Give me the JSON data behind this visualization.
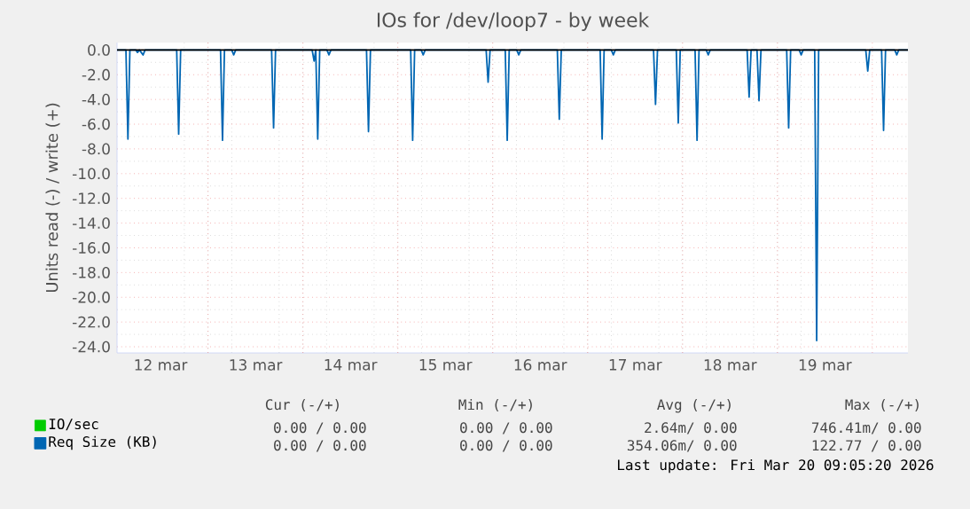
{
  "chart_data": {
    "type": "line",
    "title": "IOs for /dev/loop7 - by week",
    "ylabel": "Units read (-) / write (+)",
    "xlim": [
      "2026-03-12T01:00",
      "2026-03-20T09:00"
    ],
    "xticks": [
      {
        "value": "2026-03-12T12:00",
        "label": "12 mar"
      },
      {
        "value": "2026-03-13T12:00",
        "label": "13 mar"
      },
      {
        "value": "2026-03-14T12:00",
        "label": "14 mar"
      },
      {
        "value": "2026-03-15T12:00",
        "label": "15 mar"
      },
      {
        "value": "2026-03-16T12:00",
        "label": "16 mar"
      },
      {
        "value": "2026-03-17T12:00",
        "label": "17 mar"
      },
      {
        "value": "2026-03-18T12:00",
        "label": "18 mar"
      },
      {
        "value": "2026-03-19T12:00",
        "label": "19 mar"
      },
      {
        "value": "2026-03-13T00:00",
        "label": null
      },
      {
        "value": "2026-03-14T00:00",
        "label": null
      },
      {
        "value": "2026-03-15T00:00",
        "label": null
      },
      {
        "value": "2026-03-16T00:00",
        "label": null
      },
      {
        "value": "2026-03-17T00:00",
        "label": null
      },
      {
        "value": "2026-03-18T00:00",
        "label": null
      },
      {
        "value": "2026-03-19T00:00",
        "label": null
      },
      {
        "value": "2026-03-20T00:00",
        "label": null
      }
    ],
    "ylim": [
      -24.5,
      0.6
    ],
    "yticks": [
      {
        "value": 0,
        "label": "0.0"
      },
      {
        "value": -2,
        "label": "-2.0"
      },
      {
        "value": -4,
        "label": "-4.0"
      },
      {
        "value": -6,
        "label": "-6.0"
      },
      {
        "value": -8,
        "label": "-8.0"
      },
      {
        "value": -10,
        "label": "-10.0"
      },
      {
        "value": -12,
        "label": "-12.0"
      },
      {
        "value": -14,
        "label": "-14.0"
      },
      {
        "value": -16,
        "label": "-16.0"
      },
      {
        "value": -18,
        "label": "-18.0"
      },
      {
        "value": -20,
        "label": "-20.0"
      },
      {
        "value": -22,
        "label": "-22.0"
      },
      {
        "value": -24,
        "label": "-24.0"
      }
    ],
    "grid": true,
    "legend": "bottom left",
    "marker": "none",
    "line_style": "solid",
    "ref_lines": [
      {
        "axis": "y",
        "value": 0,
        "color": "#000000"
      }
    ],
    "series": [
      {
        "name": "IO/sec",
        "color": "#00cc00"
      },
      {
        "name": "Req Size (KB)",
        "color": "#0066b3",
        "x": [
          "2026-03-12T01:00",
          "2026-03-12T03:15",
          "2026-03-12T03:45",
          "2026-03-12T04:15",
          "2026-03-12T05:45",
          "2026-03-12T06:10",
          "2026-03-12T06:40",
          "2026-03-12T07:35",
          "2026-03-12T08:05",
          "2026-03-12T16:05",
          "2026-03-12T16:35",
          "2026-03-12T17:05",
          "2026-03-13T03:10",
          "2026-03-13T03:40",
          "2026-03-13T04:10",
          "2026-03-13T06:00",
          "2026-03-13T06:30",
          "2026-03-13T07:00",
          "2026-03-13T16:05",
          "2026-03-13T16:35",
          "2026-03-13T17:05",
          "2026-03-14T02:20",
          "2026-03-14T02:50",
          "2026-03-14T03:15",
          "2026-03-14T03:45",
          "2026-03-14T04:15",
          "2026-03-14T06:05",
          "2026-03-14T06:35",
          "2026-03-14T07:05",
          "2026-03-14T16:05",
          "2026-03-14T16:35",
          "2026-03-14T17:05",
          "2026-03-15T03:15",
          "2026-03-15T03:45",
          "2026-03-15T04:15",
          "2026-03-15T05:55",
          "2026-03-15T06:25",
          "2026-03-15T06:55",
          "2026-03-15T22:20",
          "2026-03-15T22:50",
          "2026-03-15T23:20",
          "2026-03-16T03:10",
          "2026-03-16T03:40",
          "2026-03-16T04:10",
          "2026-03-16T06:05",
          "2026-03-16T06:35",
          "2026-03-16T07:05",
          "2026-03-16T16:20",
          "2026-03-16T16:50",
          "2026-03-16T17:20",
          "2026-03-17T03:10",
          "2026-03-17T03:40",
          "2026-03-17T04:10",
          "2026-03-17T06:00",
          "2026-03-17T06:30",
          "2026-03-17T07:00",
          "2026-03-17T16:40",
          "2026-03-17T17:10",
          "2026-03-17T17:40",
          "2026-03-17T22:25",
          "2026-03-17T22:55",
          "2026-03-17T23:25",
          "2026-03-18T03:10",
          "2026-03-18T03:40",
          "2026-03-18T04:10",
          "2026-03-18T06:00",
          "2026-03-18T06:30",
          "2026-03-18T07:00",
          "2026-03-18T16:20",
          "2026-03-18T16:50",
          "2026-03-18T17:20",
          "2026-03-18T18:50",
          "2026-03-18T19:20",
          "2026-03-18T19:50",
          "2026-03-19T02:20",
          "2026-03-19T02:50",
          "2026-03-19T03:20",
          "2026-03-19T05:30",
          "2026-03-19T06:00",
          "2026-03-19T06:30",
          "2026-03-19T09:25",
          "2026-03-19T09:55",
          "2026-03-19T10:25",
          "2026-03-19T22:20",
          "2026-03-19T22:50",
          "2026-03-19T23:20",
          "2026-03-20T02:20",
          "2026-03-20T02:50",
          "2026-03-20T03:20",
          "2026-03-20T05:40",
          "2026-03-20T06:10",
          "2026-03-20T06:40",
          "2026-03-20T09:00"
        ],
        "values": [
          0,
          0,
          -7.2,
          0,
          0,
          -0.2,
          0,
          -0.4,
          0,
          0,
          -6.8,
          0,
          0,
          -7.3,
          0,
          0,
          -0.4,
          0,
          0,
          -6.3,
          0,
          0,
          -0.9,
          0,
          -7.2,
          0,
          0,
          -0.4,
          0,
          0,
          -6.6,
          0,
          0,
          -7.3,
          0,
          0,
          -0.4,
          0,
          0,
          -2.6,
          0,
          0,
          -7.3,
          0,
          0,
          -0.4,
          0,
          0,
          -5.6,
          0,
          0,
          -7.2,
          0,
          0,
          -0.4,
          0,
          0,
          -4.4,
          0,
          0,
          -5.9,
          0,
          0,
          -7.3,
          0,
          0,
          -0.4,
          0,
          0,
          -3.8,
          0,
          0,
          -4.1,
          0,
          0,
          -6.3,
          0,
          0,
          -0.4,
          0,
          0,
          -23.5,
          0,
          0,
          -1.7,
          0,
          0,
          -6.5,
          0,
          0,
          -0.4,
          0,
          0
        ]
      }
    ],
    "annotations": [
      "Cur (-/+)",
      "Min (-/+)",
      "Avg (-/+)",
      "Max (-/+)",
      "0.00 / 0.00",
      "0.00 / 0.00",
      "2.64m/ 0.00",
      "746.41m/ 0.00",
      "0.00 / 0.00",
      "0.00 / 0.00",
      "354.06m/ 0.00",
      "122.77 / 0.00",
      "Last update: Fri Mar 20 09:05:20 2026"
    ]
  }
}
